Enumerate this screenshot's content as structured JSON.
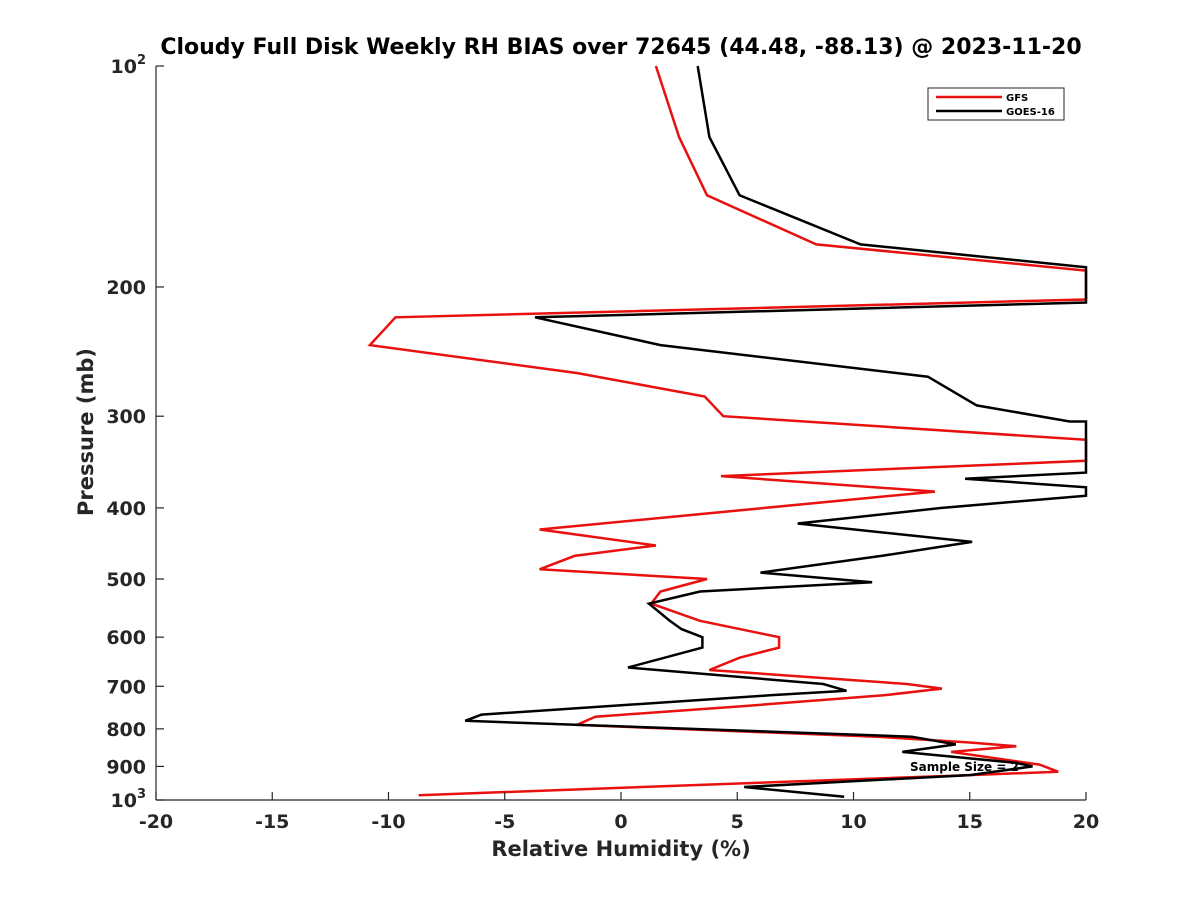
{
  "chart_data": {
    "type": "line",
    "title": "Cloudy Full Disk Weekly RH BIAS over 72645 (44.48, -88.13) @ 2023-11-20",
    "xlabel": "Relative Humidity (%)",
    "ylabel": "Pressure (mb)",
    "xlim": [
      -20,
      20
    ],
    "ylim": [
      100,
      1000
    ],
    "y_scale": "log",
    "y_reversed": true,
    "grid": false,
    "legend_position": "top-right",
    "x_ticks": [
      "-20",
      "-15",
      "-10",
      "-5",
      "0",
      "5",
      "10",
      "15",
      "20"
    ],
    "y_ticks": [
      {
        "base": "10",
        "exp": "2",
        "label": ""
      },
      {
        "label": "200"
      },
      {
        "label": "300"
      },
      {
        "label": "400"
      },
      {
        "label": "500"
      },
      {
        "label": "600"
      },
      {
        "label": "700"
      },
      {
        "label": "800"
      },
      {
        "label": "900"
      },
      {
        "base": "10",
        "exp": "3",
        "label": ""
      }
    ],
    "annotation": "Sample Size = 2",
    "series": [
      {
        "name": "GFS",
        "color": "#e8110f",
        "points": [
          [
            1.5,
            100
          ],
          [
            2.5,
            125
          ],
          [
            3.7,
            150
          ],
          [
            8.4,
            175
          ],
          [
            20,
            190
          ],
          [
            20,
            208
          ],
          [
            -9.7,
            220
          ],
          [
            -10.8,
            240
          ],
          [
            -1.9,
            262
          ],
          [
            3.6,
            282
          ],
          [
            4.4,
            300
          ],
          [
            20,
            323
          ],
          [
            20,
            345
          ],
          [
            4.3,
            362
          ],
          [
            13.5,
            380
          ],
          [
            -3.5,
            428
          ],
          [
            1.5,
            450
          ],
          [
            -2.0,
            465
          ],
          [
            -3.5,
            485
          ],
          [
            3.7,
            500
          ],
          [
            1.7,
            520
          ],
          [
            1.3,
            540
          ],
          [
            3.4,
            570
          ],
          [
            6.8,
            600
          ],
          [
            6.8,
            620
          ],
          [
            5.1,
            640
          ],
          [
            3.8,
            665
          ],
          [
            12.3,
            695
          ],
          [
            13.8,
            705
          ],
          [
            11.3,
            720
          ],
          [
            5.2,
            745
          ],
          [
            -1.1,
            770
          ],
          [
            -1.9,
            790
          ],
          [
            11.0,
            820
          ],
          [
            15.0,
            835
          ],
          [
            17.0,
            845
          ],
          [
            14.2,
            860
          ],
          [
            18.0,
            895
          ],
          [
            18.8,
            915
          ],
          [
            15.0,
            925
          ],
          [
            -8.7,
            985
          ]
        ]
      },
      {
        "name": "GOES-16",
        "color": "#000000",
        "points": [
          [
            3.3,
            100
          ],
          [
            3.8,
            125
          ],
          [
            5.1,
            150
          ],
          [
            10.3,
            175
          ],
          [
            20,
            188
          ],
          [
            20,
            210
          ],
          [
            -3.7,
            220
          ],
          [
            1.7,
            240
          ],
          [
            13.2,
            265
          ],
          [
            15.3,
            290
          ],
          [
            19.3,
            305
          ],
          [
            20,
            305
          ],
          [
            20,
            358
          ],
          [
            14.8,
            365
          ],
          [
            20,
            375
          ],
          [
            20,
            385
          ],
          [
            13.8,
            400
          ],
          [
            7.6,
            420
          ],
          [
            15.1,
            445
          ],
          [
            11.2,
            465
          ],
          [
            6.0,
            490
          ],
          [
            10.8,
            505
          ],
          [
            3.4,
            520
          ],
          [
            1.2,
            540
          ],
          [
            2.1,
            570
          ],
          [
            2.6,
            585
          ],
          [
            3.5,
            600
          ],
          [
            3.5,
            620
          ],
          [
            0.3,
            660
          ],
          [
            8.7,
            695
          ],
          [
            9.7,
            710
          ],
          [
            6.4,
            720
          ],
          [
            -6.0,
            765
          ],
          [
            -6.7,
            780
          ],
          [
            12.5,
            820
          ],
          [
            14.4,
            840
          ],
          [
            12.1,
            860
          ],
          [
            17.0,
            890
          ],
          [
            17.7,
            900
          ],
          [
            15.0,
            925
          ],
          [
            5.3,
            960
          ],
          [
            9.6,
            990
          ]
        ]
      }
    ]
  }
}
